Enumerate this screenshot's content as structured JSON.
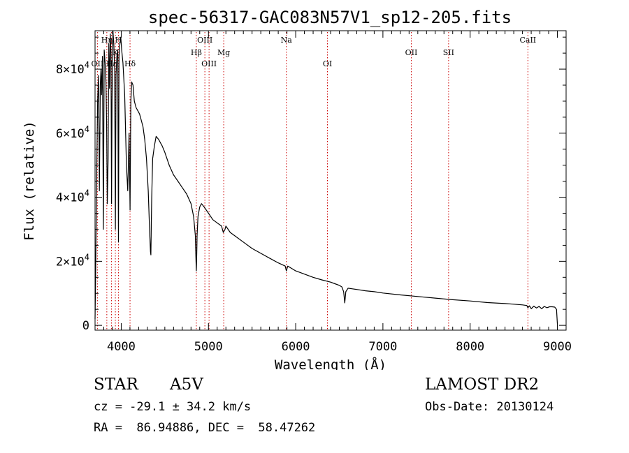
{
  "chart_data": {
    "type": "line",
    "title": "spec-56317-GAC083N57V1_sp12-205.fits",
    "xlabel": "Wavelength (Å)",
    "ylabel": "Flux (relative)",
    "xlim": [
      3700,
      9100
    ],
    "ylim": [
      -1500,
      92000
    ],
    "xticks": [
      4000,
      5000,
      6000,
      7000,
      8000,
      9000
    ],
    "yticks": [
      {
        "value": 0,
        "label": "0"
      },
      {
        "value": 20000,
        "label": "2×10",
        "exp": "4"
      },
      {
        "value": 40000,
        "label": "4×10",
        "exp": "4"
      },
      {
        "value": 60000,
        "label": "6×10",
        "exp": "4"
      },
      {
        "value": 80000,
        "label": "8×10",
        "exp": "4"
      }
    ],
    "spectrum": {
      "wavelength": [
        3700,
        3705,
        3712,
        3720,
        3730,
        3740,
        3750,
        3760,
        3768,
        3775,
        3785,
        3795,
        3805,
        3815,
        3825,
        3833,
        3840,
        3850,
        3858,
        3866,
        3875,
        3883,
        3889,
        3895,
        3905,
        3915,
        3925,
        3933,
        3940,
        3950,
        3960,
        3968,
        3975,
        3985,
        3995,
        4005,
        4020,
        4040,
        4060,
        4075,
        4090,
        4101,
        4110,
        4120,
        4135,
        4150,
        4170,
        4190,
        4210,
        4230,
        4250,
        4270,
        4290,
        4310,
        4325,
        4335,
        4340,
        4345,
        4350,
        4360,
        4380,
        4400,
        4430,
        4470,
        4500,
        4550,
        4600,
        4650,
        4700,
        4750,
        4800,
        4830,
        4850,
        4855,
        4861,
        4866,
        4870,
        4880,
        4900,
        4920,
        4950,
        5000,
        5050,
        5100,
        5150,
        5170,
        5190,
        5200,
        5250,
        5300,
        5400,
        5500,
        5600,
        5700,
        5800,
        5880,
        5893,
        5910,
        6000,
        6100,
        6200,
        6300,
        6400,
        6450,
        6500,
        6530,
        6550,
        6563,
        6575,
        6600,
        6650,
        6700,
        6800,
        6900,
        7000,
        7200,
        7400,
        7600,
        7800,
        8000,
        8200,
        8400,
        8500,
        8600,
        8650,
        8662,
        8680,
        8700,
        8730,
        8760,
        8790,
        8820,
        8850,
        8880,
        8910,
        8940,
        8970,
        8990,
        9000
      ],
      "flux": [
        2000,
        12000,
        30000,
        50000,
        70000,
        78000,
        42000,
        75000,
        80000,
        72000,
        84000,
        30000,
        86000,
        82000,
        76000,
        62000,
        38000,
        52000,
        88000,
        74000,
        91000,
        85000,
        38000,
        70000,
        92000,
        88000,
        80000,
        30000,
        78000,
        84000,
        86000,
        26000,
        84000,
        88000,
        90000,
        86000,
        82000,
        72000,
        50000,
        42000,
        60000,
        36000,
        70000,
        76000,
        75000,
        70000,
        68000,
        67000,
        66000,
        64000,
        62000,
        58000,
        52000,
        42000,
        30000,
        23000,
        22000,
        32000,
        40000,
        52000,
        56000,
        59000,
        58000,
        56000,
        54000,
        50000,
        47000,
        45000,
        43000,
        41000,
        38000,
        34000,
        28000,
        22000,
        17000,
        22000,
        28000,
        34000,
        37000,
        38000,
        37000,
        35000,
        33000,
        32000,
        31000,
        29000,
        30000,
        31000,
        29000,
        28000,
        26000,
        24000,
        22500,
        21000,
        19500,
        18500,
        17000,
        18500,
        17000,
        16000,
        15000,
        14200,
        13500,
        13000,
        12500,
        12000,
        10500,
        7000,
        10500,
        11600,
        11400,
        11200,
        10800,
        10500,
        10100,
        9500,
        9000,
        8500,
        8000,
        7600,
        7100,
        6800,
        6600,
        6400,
        6200,
        5500,
        6100,
        5200,
        6000,
        5400,
        5900,
        5200,
        5900,
        5500,
        5800,
        5800,
        5700,
        5000,
        500
      ]
    },
    "line_markers": [
      {
        "label": "Hη",
        "wave": 3835,
        "row": 1
      },
      {
        "label": "OII",
        "wave": 3727,
        "row": 3
      },
      {
        "label": "Hε",
        "wave": 3889,
        "row": 3
      },
      {
        "label": "K",
        "wave": 3933,
        "row": 2
      },
      {
        "label": "H",
        "wave": 3968,
        "row": 1
      },
      {
        "label": "Hδ",
        "wave": 4101,
        "row": 3
      },
      {
        "label": "Hβ",
        "wave": 4861,
        "row": 2
      },
      {
        "label": "OIII",
        "wave": 4959,
        "row": 1
      },
      {
        "label": "OIII",
        "wave": 5007,
        "row": 3
      },
      {
        "label": "Mg",
        "wave": 5175,
        "row": 2
      },
      {
        "label": "Na",
        "wave": 5893,
        "row": 1
      },
      {
        "label": "OI",
        "wave": 6364,
        "row": 3
      },
      {
        "label": "OII",
        "wave": 7325,
        "row": 2
      },
      {
        "label": "SII",
        "wave": 7753,
        "row": 2
      },
      {
        "label": "CaII",
        "wave": 8662,
        "row": 1
      }
    ],
    "legend": "none",
    "grid": false
  },
  "info": {
    "object_class": "STAR",
    "subclass": "A5V",
    "survey": "LAMOST DR2",
    "redshift_text": "cz = -29.1 ± 34.2 km/s",
    "obs_date_text": "Obs-Date: 20130124",
    "coords_text": "RA =  86.94886, DEC =  58.47262"
  },
  "colors": {
    "spectrum": "#000000",
    "marker_line": "#cc0000",
    "axis": "#000000"
  }
}
